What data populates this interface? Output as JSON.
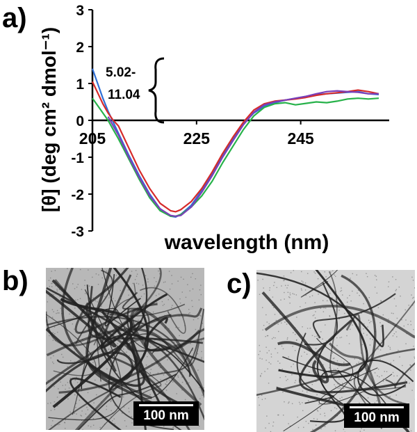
{
  "panels": {
    "a": "a)",
    "b": "b)",
    "c": "c)"
  },
  "chart_data": {
    "type": "line",
    "xlabel": "wavelength (nm)",
    "ylabel": "[θ] (deg cm² dmol⁻¹)",
    "xlim": [
      203,
      262
    ],
    "ylim": [
      -3,
      3
    ],
    "xticks": [
      205,
      225,
      245
    ],
    "yticks": [
      3,
      2,
      1,
      0,
      -1,
      -2,
      -3
    ],
    "annotation": "5.02-\n11.04",
    "grid": false,
    "series": [
      {
        "color": "#2f6fd6",
        "x": [
          205,
          206,
          207,
          208,
          209,
          210,
          212,
          214,
          216,
          218,
          220,
          221,
          222,
          224,
          226,
          228,
          230,
          232,
          234,
          236,
          238,
          240,
          242,
          244,
          246,
          248,
          250,
          252,
          254,
          256,
          258,
          260
        ],
        "y": [
          1.4,
          1.0,
          0.6,
          0.25,
          -0.05,
          -0.35,
          -0.95,
          -1.5,
          -2.0,
          -2.4,
          -2.6,
          -2.62,
          -2.55,
          -2.3,
          -1.9,
          -1.45,
          -0.95,
          -0.5,
          -0.1,
          0.2,
          0.38,
          0.48,
          0.55,
          0.6,
          0.65,
          0.7,
          0.72,
          0.74,
          0.76,
          0.78,
          0.72,
          0.7
        ]
      },
      {
        "color": "#d62a2a",
        "x": [
          205,
          206,
          207,
          208,
          209,
          210,
          212,
          214,
          216,
          218,
          220,
          221,
          222,
          224,
          226,
          228,
          230,
          232,
          234,
          236,
          238,
          240,
          242,
          244,
          246,
          248,
          250,
          252,
          254,
          256,
          258,
          260
        ],
        "y": [
          1.05,
          0.75,
          0.45,
          0.2,
          0.0,
          -0.15,
          -0.75,
          -1.35,
          -1.85,
          -2.25,
          -2.45,
          -2.48,
          -2.42,
          -2.2,
          -1.85,
          -1.4,
          -0.9,
          -0.45,
          -0.05,
          0.28,
          0.45,
          0.52,
          0.55,
          0.58,
          0.62,
          0.68,
          0.72,
          0.75,
          0.78,
          0.82,
          0.78,
          0.72
        ]
      },
      {
        "color": "#27b24a",
        "x": [
          205,
          206,
          207,
          208,
          209,
          210,
          212,
          214,
          216,
          218,
          220,
          221,
          222,
          224,
          226,
          228,
          230,
          232,
          234,
          236,
          238,
          240,
          242,
          244,
          246,
          248,
          250,
          252,
          254,
          256,
          258,
          260
        ],
        "y": [
          0.6,
          0.4,
          0.2,
          0.0,
          -0.25,
          -0.5,
          -1.05,
          -1.6,
          -2.1,
          -2.45,
          -2.6,
          -2.6,
          -2.55,
          -2.35,
          -2.05,
          -1.65,
          -1.15,
          -0.7,
          -0.25,
          0.12,
          0.35,
          0.45,
          0.48,
          0.42,
          0.46,
          0.5,
          0.48,
          0.52,
          0.58,
          0.6,
          0.58,
          0.6
        ]
      },
      {
        "color": "#7b3fb8",
        "x": [
          205,
          206,
          207,
          208,
          209,
          210,
          212,
          214,
          216,
          218,
          220,
          221,
          222,
          224,
          226,
          228,
          230,
          232,
          234,
          236,
          238,
          240,
          242,
          244,
          246,
          248,
          250,
          252,
          254,
          256,
          258,
          260
        ],
        "y": [
          null,
          null,
          null,
          0.1,
          -0.15,
          -0.4,
          -1.0,
          -1.55,
          -2.05,
          -2.4,
          -2.58,
          -2.6,
          -2.58,
          -2.35,
          -1.95,
          -1.5,
          -1.0,
          -0.55,
          -0.12,
          0.22,
          0.42,
          0.5,
          0.55,
          0.6,
          0.65,
          0.72,
          0.78,
          0.8,
          0.78,
          0.76,
          0.72,
          0.72
        ]
      }
    ]
  },
  "scalebars": {
    "b": "100 nm",
    "c": "100 nm"
  }
}
